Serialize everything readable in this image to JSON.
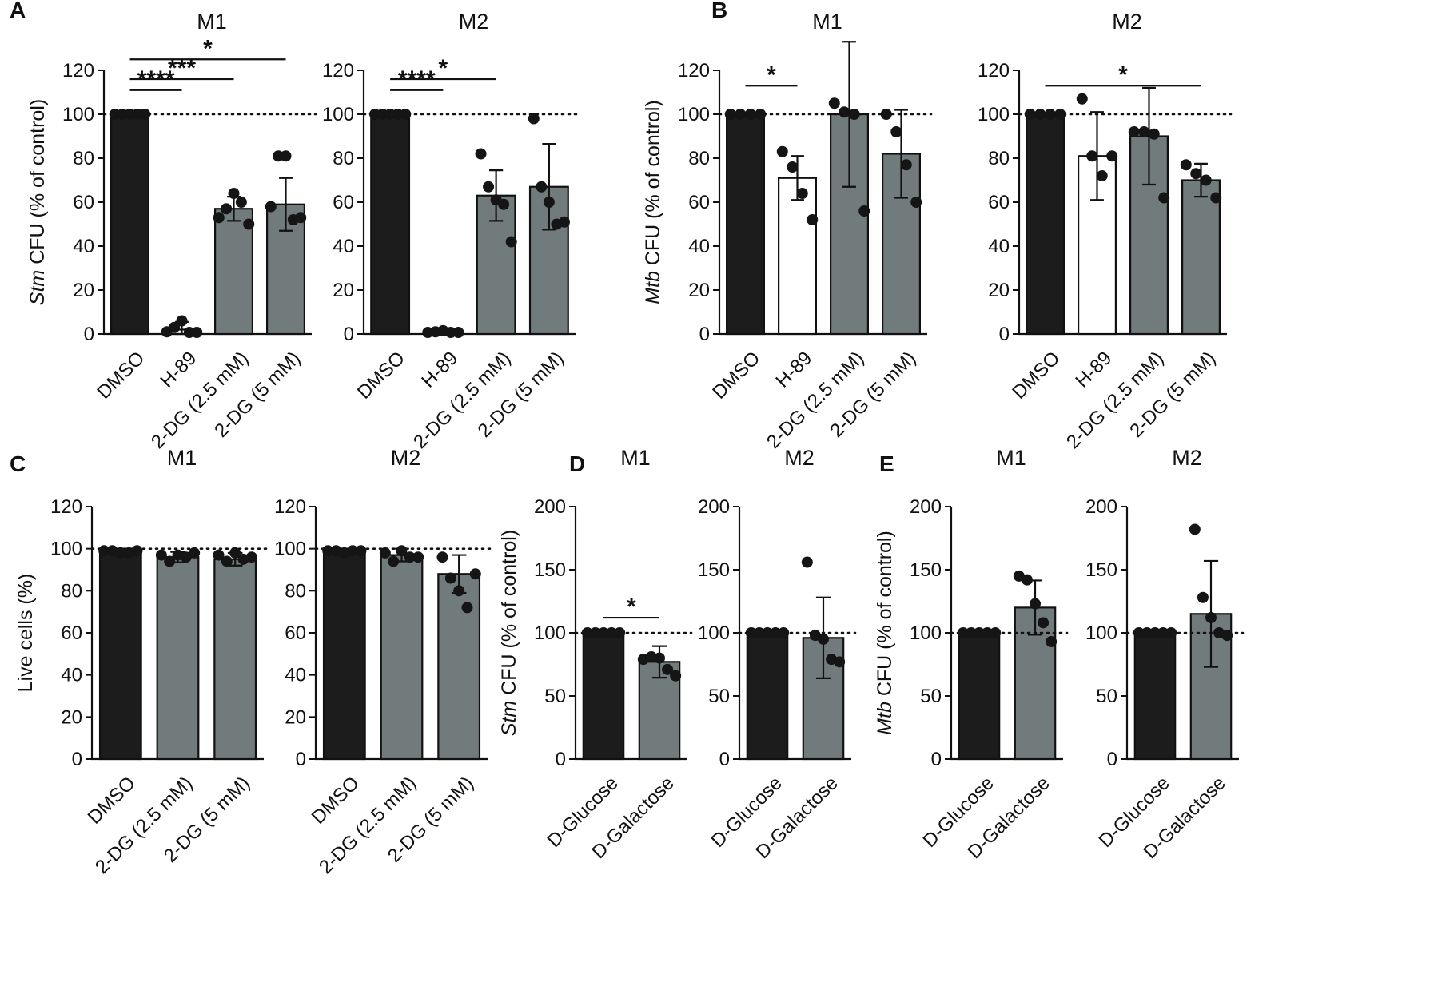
{
  "colors": {
    "black": "#1c1c1c",
    "gray": "#727b7c",
    "white": "#ffffff"
  },
  "chart_data": [
    {
      "type": "bar",
      "panel_label": "A",
      "title": "M1",
      "ylabel_italic": "Stm",
      "ylabel_rest": " CFU (% of control)",
      "ylim": [
        0,
        120
      ],
      "yticks": [
        "0",
        "20",
        "40",
        "60",
        "80",
        "100",
        "120"
      ],
      "reference_line": 100,
      "categories": [
        "DMSO",
        "H-89",
        "2-DG (2.5 mM)",
        "2-DG (5 mM)"
      ],
      "fills": [
        "black",
        "white",
        "gray",
        "gray"
      ],
      "values": [
        100,
        2,
        57,
        59
      ],
      "sd": [
        0,
        3.5,
        5.5,
        12
      ],
      "points": [
        [
          100,
          100,
          100,
          100,
          100
        ],
        [
          1,
          3,
          6,
          0,
          0
        ],
        [
          53,
          57,
          64,
          60,
          50
        ],
        [
          58,
          81,
          81,
          52,
          53
        ]
      ],
      "significance": [
        {
          "label": "****",
          "from": 0,
          "to": 1,
          "y": 111
        },
        {
          "label": "***",
          "from": 0,
          "to": 2,
          "y": 116
        },
        {
          "label": "*",
          "from": 0,
          "to": 3,
          "y": 125
        }
      ]
    },
    {
      "type": "bar",
      "title": "M2",
      "ylim": [
        0,
        120
      ],
      "yticks": [
        "0",
        "20",
        "40",
        "60",
        "80",
        "100",
        "120"
      ],
      "reference_line": 100,
      "categories": [
        "DMSO",
        "H-89",
        "2-DG (2.5 mM)",
        "2-DG (5 mM)"
      ],
      "fills": [
        "black",
        "white",
        "gray",
        "gray"
      ],
      "values": [
        100,
        1,
        63,
        67
      ],
      "sd": [
        0,
        0.5,
        11.5,
        19.5
      ],
      "points": [
        [
          100,
          100,
          100,
          100,
          100
        ],
        [
          0.5,
          1,
          1.5,
          0,
          0
        ],
        [
          82,
          67,
          61,
          59,
          42
        ],
        [
          98,
          67,
          60,
          50,
          51
        ]
      ],
      "significance": [
        {
          "label": "****",
          "from": 0,
          "to": 1,
          "y": 111
        },
        {
          "label": "*",
          "from": 0,
          "to": 2,
          "y": 116
        }
      ]
    },
    {
      "type": "bar",
      "panel_label": "B",
      "title": "M1",
      "ylabel_italic": "Mtb",
      "ylabel_rest": " CFU (% of control)",
      "ylim": [
        0,
        120
      ],
      "yticks": [
        "0",
        "20",
        "40",
        "60",
        "80",
        "100",
        "120"
      ],
      "reference_line": 100,
      "categories": [
        "DMSO",
        "H-89",
        "2-DG (2.5 mM)",
        "2-DG (5 mM)"
      ],
      "fills": [
        "black",
        "white",
        "gray",
        "gray"
      ],
      "values": [
        100,
        71,
        100,
        82
      ],
      "sd": [
        0,
        10,
        33,
        20
      ],
      "points": [
        [
          100,
          100,
          100,
          100
        ],
        [
          83,
          76,
          64,
          52
        ],
        [
          105,
          101,
          100,
          56
        ],
        [
          100,
          92,
          77,
          60
        ]
      ],
      "significance": [
        {
          "label": "*",
          "from": 0,
          "to": 1,
          "y": 113
        }
      ]
    },
    {
      "type": "bar",
      "title": "M2",
      "ylim": [
        0,
        120
      ],
      "yticks": [
        "0",
        "20",
        "40",
        "60",
        "80",
        "100",
        "120"
      ],
      "reference_line": 100,
      "categories": [
        "DMSO",
        "H-89",
        "2-DG (2.5 mM)",
        "2-DG (5 mM)"
      ],
      "fills": [
        "black",
        "white",
        "gray",
        "gray"
      ],
      "values": [
        100,
        81,
        90,
        70
      ],
      "sd": [
        0,
        20,
        22,
        7.5
      ],
      "points": [
        [
          100,
          100,
          100,
          100
        ],
        [
          107,
          81,
          72,
          81
        ],
        [
          92,
          92,
          91,
          62
        ],
        [
          77,
          73,
          70,
          62
        ]
      ],
      "significance": [
        {
          "label": "*",
          "from": 0,
          "to": 3,
          "y": 113
        }
      ]
    },
    {
      "type": "bar",
      "panel_label": "C",
      "title": "M1",
      "ylabel": "Live cells (%)",
      "ylim": [
        0,
        120
      ],
      "yticks": [
        "0",
        "20",
        "40",
        "60",
        "80",
        "100",
        "120"
      ],
      "reference_line": 100,
      "categories": [
        "DMSO",
        "2-DG (2.5 mM)",
        "2-DG (5 mM)"
      ],
      "fills": [
        "black",
        "gray",
        "gray"
      ],
      "values": [
        98,
        96,
        95
      ],
      "sd": [
        0.8,
        2.5,
        3
      ],
      "points": [
        [
          99,
          99,
          98,
          98,
          99
        ],
        [
          97,
          94,
          97,
          96,
          98
        ],
        [
          97,
          94,
          98,
          95,
          96
        ]
      ],
      "significance": []
    },
    {
      "type": "bar",
      "title": "M2",
      "ylim": [
        0,
        120
      ],
      "yticks": [
        "0",
        "20",
        "40",
        "60",
        "80",
        "100",
        "120"
      ],
      "reference_line": 100,
      "categories": [
        "DMSO",
        "2-DG (2.5 mM)",
        "2-DG (5 mM)"
      ],
      "fills": [
        "black",
        "gray",
        "gray"
      ],
      "values": [
        98,
        97,
        88
      ],
      "sd": [
        0.8,
        3,
        9
      ],
      "points": [
        [
          99,
          99,
          98,
          99,
          99
        ],
        [
          98,
          94,
          99,
          96,
          96
        ],
        [
          96,
          86,
          80,
          72,
          88
        ]
      ],
      "significance": []
    },
    {
      "type": "bar",
      "panel_label": "D",
      "title": "M1",
      "ylabel_italic": "Stm",
      "ylabel_rest": " CFU (% of control)",
      "ylim": [
        0,
        200
      ],
      "yticks": [
        "0",
        "50",
        "100",
        "150",
        "200"
      ],
      "reference_line": 100,
      "categories": [
        "D-Glucose",
        "D-Galactose"
      ],
      "fills": [
        "black",
        "gray"
      ],
      "values": [
        100,
        77
      ],
      "sd": [
        0,
        12.5
      ],
      "points": [
        [
          100,
          100,
          100,
          100,
          100
        ],
        [
          79,
          81,
          80,
          71,
          66
        ]
      ],
      "significance": [
        {
          "label": "*",
          "from": 0,
          "to": 1,
          "y": 112
        }
      ]
    },
    {
      "type": "bar",
      "title": "M2",
      "ylim": [
        0,
        200
      ],
      "yticks": [
        "0",
        "50",
        "100",
        "150",
        "200"
      ],
      "reference_line": 100,
      "categories": [
        "D-Glucose",
        "D-Galactose"
      ],
      "fills": [
        "black",
        "gray"
      ],
      "values": [
        100,
        96
      ],
      "sd": [
        0,
        32
      ],
      "points": [
        [
          100,
          100,
          100,
          100,
          100
        ],
        [
          156,
          98,
          95,
          79,
          77
        ]
      ],
      "significance": []
    },
    {
      "type": "bar",
      "panel_label": "E",
      "title": "M1",
      "ylabel_italic": "Mtb",
      "ylabel_rest": " CFU (% of control)",
      "ylim": [
        0,
        200
      ],
      "yticks": [
        "0",
        "50",
        "100",
        "150",
        "200"
      ],
      "reference_line": 100,
      "categories": [
        "D-Glucose",
        "D-Galactose"
      ],
      "fills": [
        "black",
        "gray"
      ],
      "values": [
        100,
        120
      ],
      "sd": [
        0,
        21.5
      ],
      "points": [
        [
          100,
          100,
          100,
          100,
          100
        ],
        [
          145,
          142,
          123,
          108,
          93
        ]
      ],
      "significance": []
    },
    {
      "type": "bar",
      "title": "M2",
      "ylim": [
        0,
        200
      ],
      "yticks": [
        "0",
        "50",
        "100",
        "150",
        "200"
      ],
      "reference_line": 100,
      "categories": [
        "D-Glucose",
        "D-Galactose"
      ],
      "fills": [
        "black",
        "gray"
      ],
      "values": [
        100,
        115
      ],
      "sd": [
        0,
        42
      ],
      "points": [
        [
          100,
          100,
          100,
          100,
          100
        ],
        [
          182,
          128,
          112,
          100,
          98
        ]
      ],
      "significance": []
    }
  ]
}
